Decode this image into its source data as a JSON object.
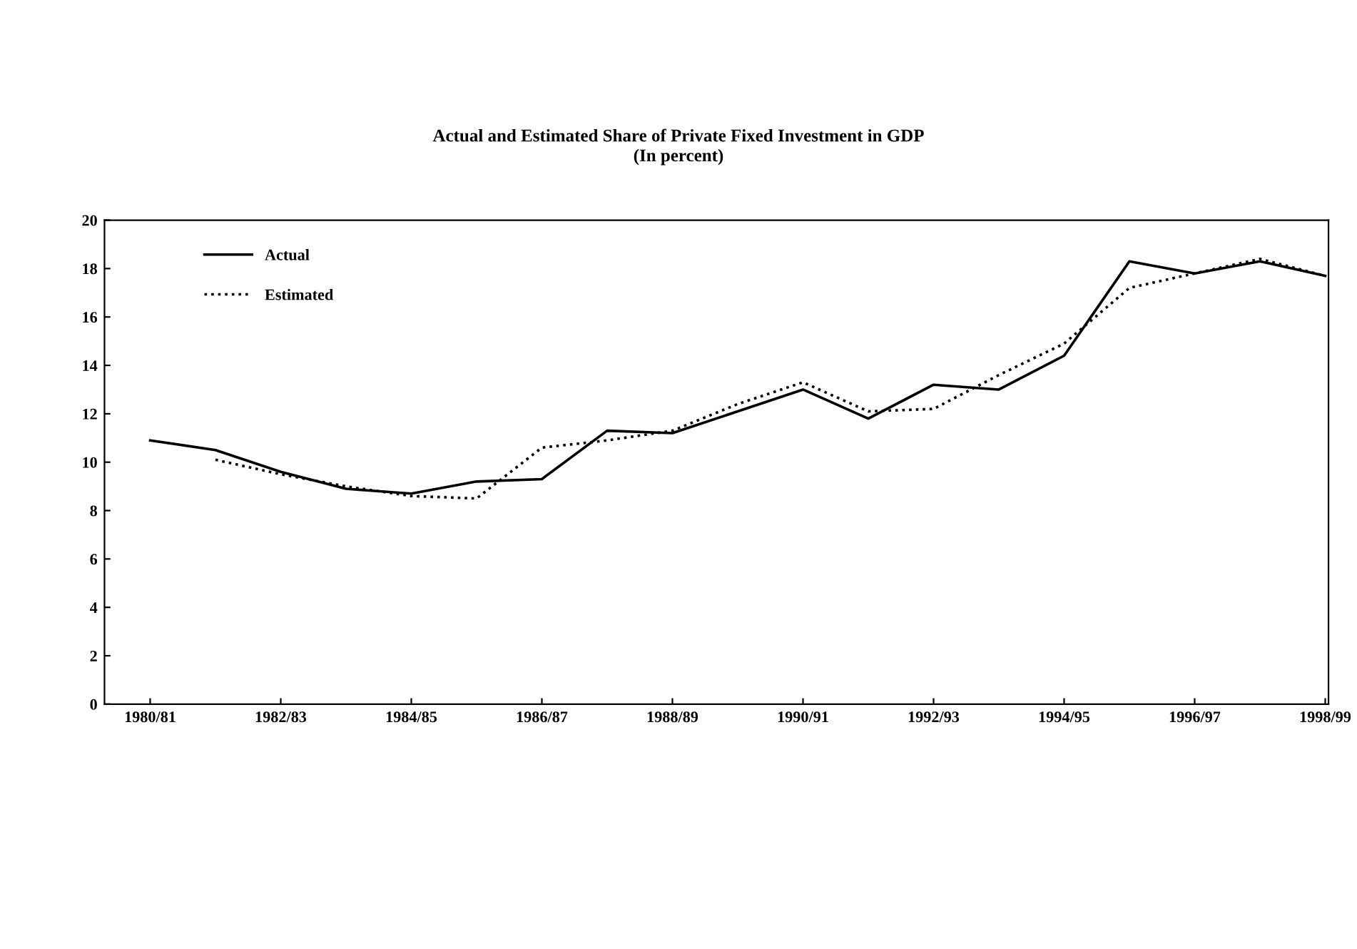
{
  "chart_data": {
    "type": "line",
    "title": "Actual and Estimated Share of Private Fixed Investment in GDP\n(In percent)",
    "categories": [
      "1980/81",
      null,
      "1982/83",
      null,
      "1984/85",
      null,
      "1986/87",
      null,
      "1988/89",
      null,
      "1990/91",
      null,
      "1992/93",
      null,
      "1994/95",
      null,
      "1996/97",
      null,
      "1998/99"
    ],
    "series": [
      {
        "name": "Actual",
        "color": "#000000",
        "line_style": "solid",
        "values": [
          10.9,
          10.5,
          9.6,
          8.9,
          8.7,
          9.2,
          9.3,
          11.3,
          11.2,
          12.1,
          13.0,
          11.8,
          13.2,
          13.0,
          14.4,
          18.3,
          17.8,
          18.3,
          17.7
        ]
      },
      {
        "name": "Estimated",
        "color": "#000000",
        "line_style": "dotted",
        "values": [
          null,
          10.1,
          9.5,
          9.0,
          8.6,
          8.5,
          10.6,
          10.9,
          11.3,
          12.4,
          13.3,
          12.1,
          12.2,
          13.6,
          14.9,
          17.2,
          17.8,
          18.4,
          17.7
        ]
      }
    ],
    "ylim": [
      0,
      20
    ],
    "yticks": [
      0,
      2,
      4,
      6,
      8,
      10,
      12,
      14,
      16,
      18,
      20
    ],
    "grid": false,
    "legend": "top left",
    "marker": "none"
  }
}
